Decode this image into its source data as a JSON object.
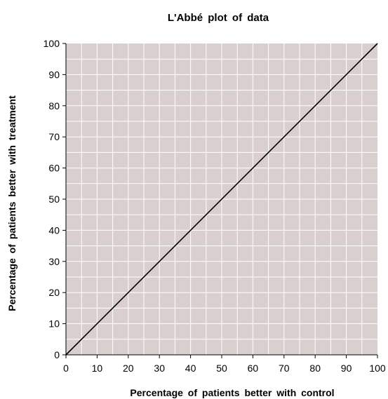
{
  "chart_data": {
    "type": "line",
    "title": "L'Abbé plot of data",
    "xlabel": "Percentage of patients better with control",
    "ylabel": "Percentage of patients better with treatment",
    "xlim": [
      0,
      100
    ],
    "ylim": [
      0,
      100
    ],
    "xticks": [
      0,
      10,
      20,
      30,
      40,
      50,
      60,
      70,
      80,
      90,
      100
    ],
    "yticks": [
      0,
      10,
      20,
      30,
      40,
      50,
      60,
      70,
      80,
      90,
      100
    ],
    "grid": true,
    "minor_grid_step": 5,
    "series": [
      {
        "x": [
          0,
          100
        ],
        "y": [
          0,
          100
        ]
      }
    ],
    "colors": {
      "plot_background": "#d9cfcf",
      "grid": "#ffffff",
      "line": "#000000"
    }
  }
}
